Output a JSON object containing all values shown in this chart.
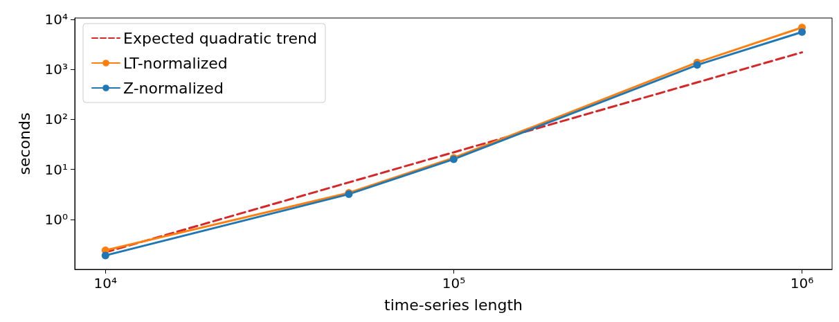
{
  "chart_data": {
    "type": "line",
    "xlabel": "time-series length",
    "ylabel": "seconds",
    "log": "xy",
    "xlim": [
      8165,
      1220000
    ],
    "ylim": [
      0.1,
      10700
    ],
    "xticks": [
      {
        "value": 10000,
        "label": "10⁴"
      },
      {
        "value": 100000,
        "label": "10⁵"
      },
      {
        "value": 1000000,
        "label": "10⁶"
      }
    ],
    "yticks": [
      {
        "value": 1,
        "label": "10⁰"
      },
      {
        "value": 10,
        "label": "10¹"
      },
      {
        "value": 100,
        "label": "10²"
      },
      {
        "value": 1000,
        "label": "10³"
      },
      {
        "value": 10000,
        "label": "10⁴"
      }
    ],
    "x": [
      10000,
      50000,
      100000,
      500000,
      1000000
    ],
    "series": [
      {
        "name": "Expected quadratic trend",
        "color": "#d62728",
        "line_style": "dashed",
        "marker": "none",
        "values": [
          0.22,
          5.5,
          22,
          550,
          2200
        ]
      },
      {
        "name": "LT-normalized",
        "color": "#ff7f0e",
        "line_style": "solid",
        "marker": "circle",
        "values": [
          0.24,
          3.4,
          17,
          1380,
          6900
        ]
      },
      {
        "name": "Z-normalized",
        "color": "#1f77b4",
        "line_style": "solid",
        "marker": "circle",
        "values": [
          0.19,
          3.2,
          16,
          1230,
          5600
        ]
      }
    ],
    "legend": "top left",
    "grid": false
  }
}
